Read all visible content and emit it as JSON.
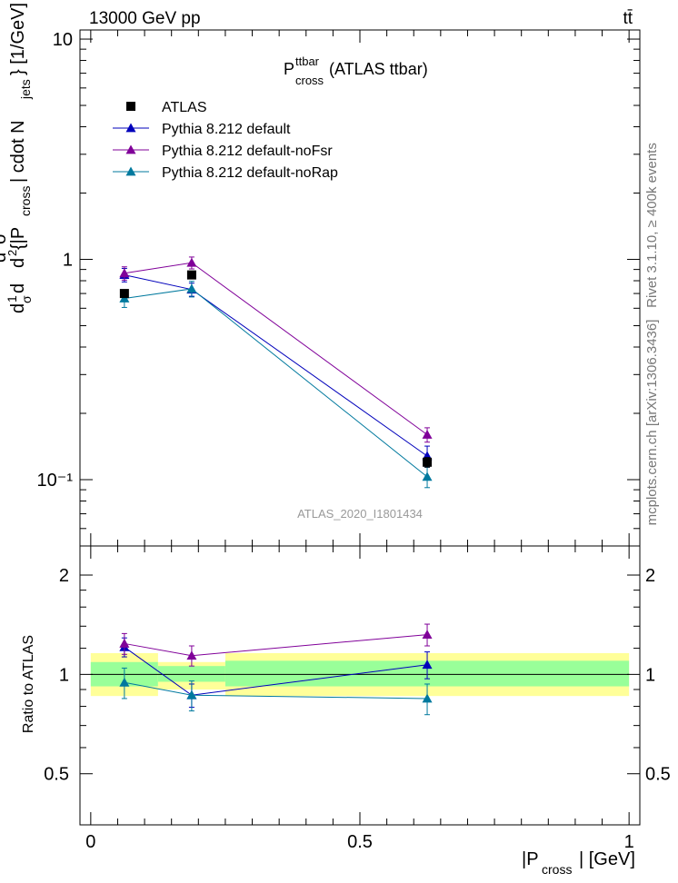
{
  "header": {
    "energy": "13000 GeV pp",
    "process": "tt̄"
  },
  "plot_title": {
    "main": "P",
    "sup": "ttbar",
    "sub": "cross",
    "rest": " (ATLAS ttbar)"
  },
  "side_labels": {
    "rivet": "Rivet 3.1.10, ≥ 400k events",
    "mcplots": "mcplots.cern.ch [arXiv:1306.3436]"
  },
  "watermark": "ATLAS_2020_I1801434",
  "top_ylabel": {
    "part1": "d",
    "part2": "1",
    "part3": "σ",
    "part4": "d",
    "part5": "d",
    "part6": "2",
    "part7": "d",
    "part8": "2",
    "part9": "σ",
    "part10": "fid",
    "part11": " {|P",
    "part12": "cross",
    "part13": "| cdot N",
    "part14": "jets",
    "part15": "} [1/GeV]"
  },
  "bottom_ylabel": "Ratio to ATLAS",
  "xlabel": {
    "pre": "|P",
    "sub": "cross",
    "post": "| [GeV]"
  },
  "colors": {
    "atlas": "#000000",
    "default": "#0000bb",
    "noFsr": "#800099",
    "noRap": "#00799e",
    "band_outer": "#ffff99",
    "band_inner": "#99ff99"
  },
  "chart_data": [
    {
      "type": "scatter",
      "panel": "main",
      "yscale": "log",
      "xlim": [
        -0.02,
        1.02
      ],
      "ylim": [
        0.05,
        11
      ],
      "ytick_labels": [
        "10⁻¹",
        "1",
        "10"
      ],
      "legend": "top-left",
      "x_edges": [
        0,
        0.125,
        0.25,
        1.0
      ],
      "x": [
        0.0625,
        0.1875,
        0.625
      ],
      "series": [
        {
          "name": "ATLAS",
          "key": "atlas",
          "marker": "square",
          "values": [
            0.7,
            0.85,
            0.12
          ],
          "errors": [
            0.02,
            0.03,
            0.006
          ]
        },
        {
          "name": "Pythia 8.212 default",
          "key": "default",
          "marker": "triangle",
          "values": [
            0.85,
            0.73,
            0.128
          ],
          "errors": [
            0.06,
            0.05,
            0.014
          ]
        },
        {
          "name": "Pythia 8.212 default-noFsr",
          "key": "noFsr",
          "marker": "triangle",
          "values": [
            0.865,
            0.965,
            0.16
          ],
          "errors": [
            0.06,
            0.06,
            0.012
          ]
        },
        {
          "name": "Pythia 8.212 default-noRap",
          "key": "noRap",
          "marker": "triangle",
          "values": [
            0.665,
            0.735,
            0.103
          ],
          "errors": [
            0.06,
            0.06,
            0.011
          ]
        }
      ]
    },
    {
      "type": "scatter",
      "panel": "ratio",
      "yscale": "log",
      "ylim": [
        0.35,
        2.45
      ],
      "ytick_labels": [
        "0.5",
        "1",
        "2"
      ],
      "xtick_labels": [
        "0",
        "0.5",
        "1"
      ],
      "bands": [
        {
          "x": [
            0,
            0.125
          ],
          "outer": [
            0.86,
            1.16
          ],
          "inner": [
            0.92,
            1.09
          ]
        },
        {
          "x": [
            0.125,
            0.25
          ],
          "outer": [
            0.9,
            1.09
          ],
          "inner": [
            0.95,
            1.06
          ]
        },
        {
          "x": [
            0.25,
            1.0
          ],
          "outer": [
            0.86,
            1.16
          ],
          "inner": [
            0.92,
            1.1
          ]
        }
      ],
      "x": [
        0.0625,
        0.1875,
        0.625
      ],
      "series": [
        {
          "name": "Pythia 8.212 default",
          "key": "default",
          "values": [
            1.21,
            0.865,
            1.07
          ],
          "errors": [
            0.08,
            0.07,
            0.1
          ]
        },
        {
          "name": "Pythia 8.212 default-noFsr",
          "key": "noFsr",
          "values": [
            1.24,
            1.14,
            1.32
          ],
          "errors": [
            0.09,
            0.08,
            0.1
          ]
        },
        {
          "name": "Pythia 8.212 default-noRap",
          "key": "noRap",
          "values": [
            0.945,
            0.865,
            0.845
          ],
          "errors": [
            0.1,
            0.09,
            0.09
          ]
        }
      ]
    }
  ]
}
